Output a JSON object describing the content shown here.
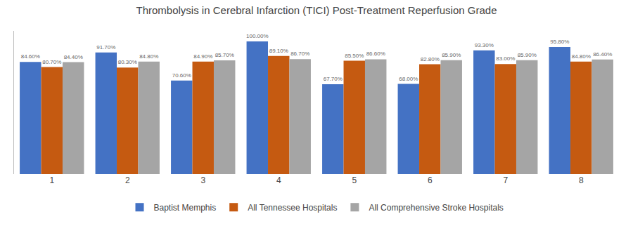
{
  "chart_data": {
    "type": "bar",
    "title": "Thrombolysis in Cerebral Infarction (TICI) Post-Treatment Reperfusion Grade",
    "categories": [
      "1",
      "2",
      "3",
      "4",
      "5",
      "6",
      "7",
      "8"
    ],
    "series": [
      {
        "name": "Baptist Memphis",
        "color": "#4472C4",
        "values": [
          84.6,
          91.7,
          70.6,
          100.0,
          67.7,
          68.0,
          93.3,
          95.8
        ],
        "value_labels": [
          "84.60%",
          "91.70%",
          "70.60%",
          "100.00%",
          "67.70%",
          "68.00%",
          "93.30%",
          "95.80%"
        ]
      },
      {
        "name": "All Tennessee Hospitals",
        "color": "#C55A11",
        "values": [
          80.7,
          80.3,
          84.9,
          89.1,
          85.5,
          82.8,
          83.0,
          84.8
        ],
        "value_labels": [
          "80.70%",
          "80.30%",
          "84.90%",
          "89.10%",
          "85.50%",
          "82.80%",
          "83.00%",
          "84.80%"
        ]
      },
      {
        "name": "All Comprehensive Stroke Hospitals",
        "color": "#A5A5A5",
        "values": [
          84.4,
          84.8,
          85.7,
          86.7,
          86.6,
          85.9,
          85.9,
          86.4
        ],
        "value_labels": [
          "84.40%",
          "84.80%",
          "85.70%",
          "86.70%",
          "86.60%",
          "85.90%",
          "85.90%",
          "86.40%"
        ]
      }
    ],
    "ylim": [
      0,
      108
    ],
    "data_labels": true,
    "legend": "bottom",
    "tick_labels": "x",
    "grid": false
  }
}
